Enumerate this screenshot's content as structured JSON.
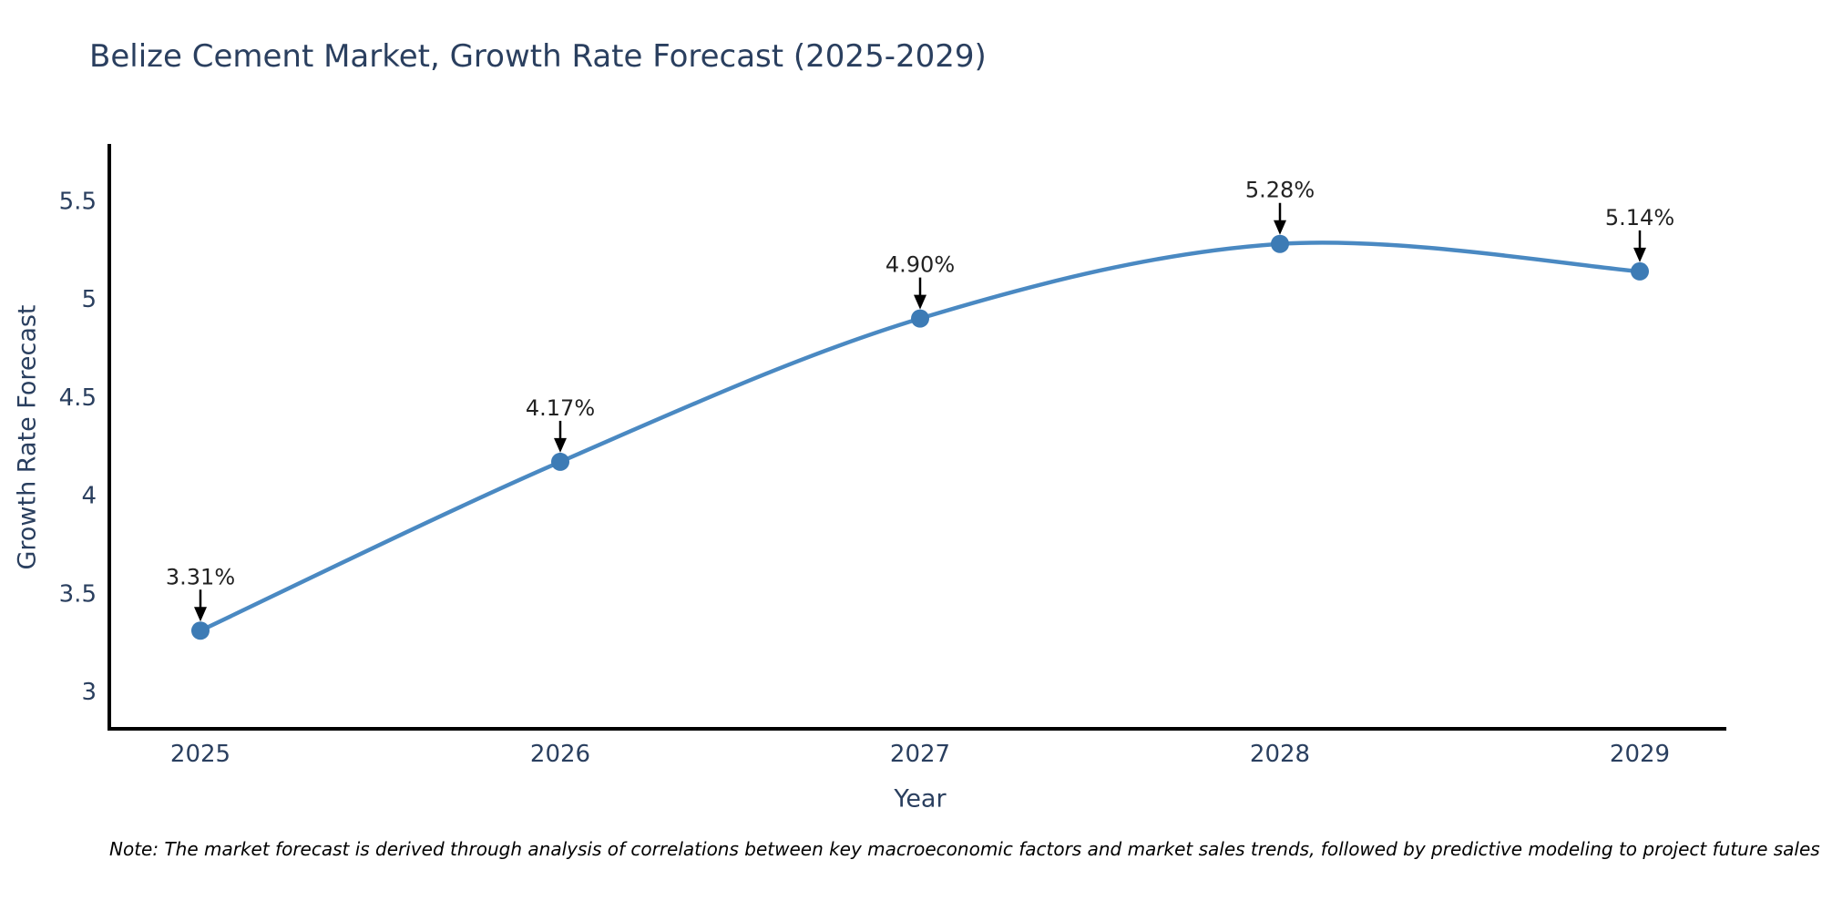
{
  "chart_data": {
    "type": "line",
    "title": "Belize Cement Market, Growth Rate Forecast (2025-2029)",
    "xlabel": "Year",
    "ylabel": "Growth Rate Forecast",
    "categories": [
      "2025",
      "2026",
      "2027",
      "2028",
      "2029"
    ],
    "series": [
      {
        "name": "Growth Rate Forecast",
        "values": [
          3.31,
          4.17,
          4.9,
          5.28,
          5.14
        ]
      }
    ],
    "point_labels": [
      "3.31%",
      "4.17%",
      "4.90%",
      "5.28%",
      "5.14%"
    ],
    "yticks": [
      3,
      3.5,
      4,
      4.5,
      5,
      5.5
    ],
    "ylim": [
      2.81,
      5.78
    ],
    "grid": false,
    "legend_position": "none",
    "curve": "spline",
    "annotation_style": "label-above-with-down-arrow",
    "colors": {
      "line": "#4a89c2",
      "marker": "#3d7bb5",
      "axis": "#000000",
      "arrow": "#000000",
      "title_text": "#2a3f5f",
      "tick_text": "#2a3f5f",
      "annotation_text": "#222222",
      "background": "#ffffff"
    }
  },
  "note": "Note: The market forecast is derived through analysis of correlations between key macroeconomic factors and market sales trends, followed by predictive modeling to project future sales"
}
